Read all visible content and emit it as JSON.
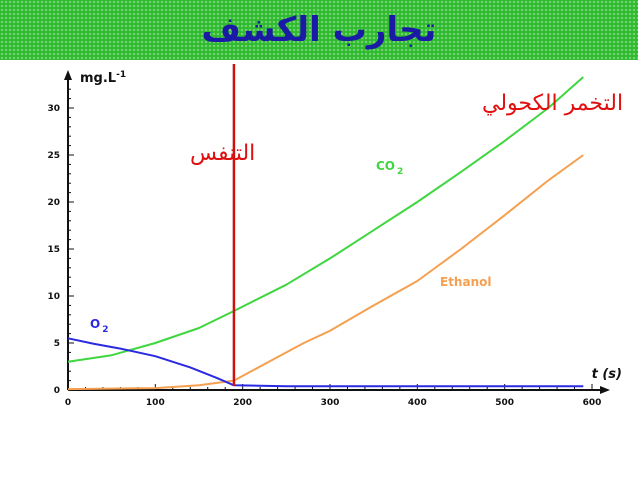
{
  "slide": {
    "title": "تجارب الكشف",
    "header_color": "#2ebb2e",
    "title_color": "#1a1aa6"
  },
  "chart_data": {
    "type": "line",
    "xlabel": "t (s)",
    "ylabel": "mg.L-1",
    "xlim": [
      0,
      620
    ],
    "ylim": [
      0,
      33
    ],
    "x_ticks": [
      0,
      100,
      200,
      300,
      400,
      500,
      600
    ],
    "y_ticks": [
      0,
      5,
      10,
      15,
      20,
      25,
      30
    ],
    "divider_x": 190,
    "phase_labels": {
      "respiration": "التنفس",
      "fermentation": "التخمر الكحولي"
    },
    "series": [
      {
        "name": "CO2",
        "color": "#3fd63f",
        "points": [
          [
            0,
            3.0
          ],
          [
            50,
            3.7
          ],
          [
            100,
            5.0
          ],
          [
            150,
            6.6
          ],
          [
            190,
            8.4
          ],
          [
            250,
            11.2
          ],
          [
            300,
            14.0
          ],
          [
            350,
            17.0
          ],
          [
            400,
            20.0
          ],
          [
            450,
            23.2
          ],
          [
            500,
            26.5
          ],
          [
            550,
            30.0
          ],
          [
            590,
            33.3
          ]
        ]
      },
      {
        "name": "Ethanol",
        "color": "#f5a050",
        "points": [
          [
            0,
            0.1
          ],
          [
            100,
            0.2
          ],
          [
            150,
            0.5
          ],
          [
            190,
            1.0
          ],
          [
            230,
            3.0
          ],
          [
            270,
            5.0
          ],
          [
            300,
            6.3
          ],
          [
            350,
            9.0
          ],
          [
            400,
            11.6
          ],
          [
            450,
            15.0
          ],
          [
            500,
            18.6
          ],
          [
            550,
            22.3
          ],
          [
            590,
            25.0
          ]
        ]
      },
      {
        "name": "O2",
        "color": "#2a2ae0",
        "points": [
          [
            0,
            5.5
          ],
          [
            30,
            4.9
          ],
          [
            60,
            4.4
          ],
          [
            100,
            3.6
          ],
          [
            140,
            2.4
          ],
          [
            170,
            1.3
          ],
          [
            190,
            0.5
          ],
          [
            250,
            0.4
          ],
          [
            400,
            0.4
          ],
          [
            590,
            0.4
          ]
        ]
      }
    ]
  }
}
